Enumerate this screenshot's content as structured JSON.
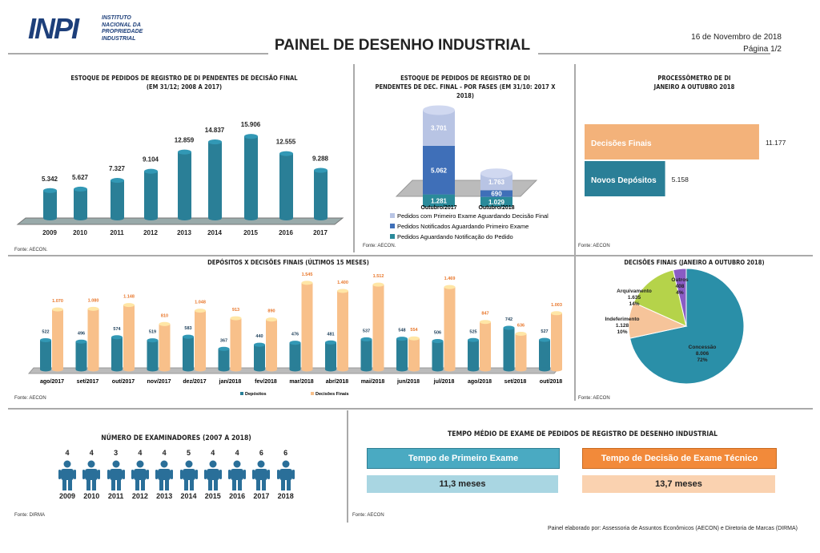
{
  "header": {
    "logo_text": "INPI",
    "logo_subtitle": "INSTITUTO NACIONAL DA PROPRIEDADE INDUSTRIAL",
    "title": "PAINEL DE DESENHO INDUSTRIAL",
    "date": "16 de Novembro de 2018",
    "page": "Página 1/2"
  },
  "colors": {
    "teal": "#2a7f97",
    "peach": "#f8c08a",
    "orange": "#f28a3a",
    "light_blue": "#b8c8e8",
    "mid_blue": "#3f6fb8",
    "pie_green": "#b5d34a",
    "pie_purple": "#8a5cc4"
  },
  "chart_data": [
    {
      "type": "bar",
      "title": "ESTOQUE DE PEDIDOS DE REGISTRO DE DI PENDENTES DE DECISÃO FINAL",
      "subtitle": "(EM 31/12; 2008 A 2017)",
      "categories": [
        "2009",
        "2010",
        "2011",
        "2012",
        "2013",
        "2014",
        "2015",
        "2016",
        "2017"
      ],
      "values": [
        5342,
        5627,
        7327,
        9104,
        12859,
        14837,
        15906,
        12555,
        9288
      ],
      "labels": [
        "5.342",
        "5.627",
        "7.327",
        "9.104",
        "12.859",
        "14.837",
        "15.906",
        "12.555",
        "9.288"
      ],
      "source": "Fonte: AECON."
    },
    {
      "type": "bar",
      "stacked": true,
      "title": "ESTOQUE DE PEDIDOS DE REGISTRO DE DI",
      "subtitle": "PENDENTES DE DEC. FINAL - POR FASES (EM 31/10: 2017 X 2018)",
      "categories": [
        "Outubro/2017",
        "Outubro/2018"
      ],
      "series": [
        {
          "name": "Pedidos Aguardando Notificação do Pedido",
          "values": [
            1281,
            1029
          ],
          "labels": [
            "1.281",
            "1.029"
          ],
          "color": "#2a8a9a"
        },
        {
          "name": "Pedidos Notificados Aguardando Primeiro Exame",
          "values": [
            5062,
            690
          ],
          "labels": [
            "5.062",
            "690"
          ],
          "color": "#3f6fb8"
        },
        {
          "name": "Pedidos com Primeiro Exame Aguardando Decisão Final",
          "values": [
            3701,
            1763
          ],
          "labels": [
            "3.701",
            "1.763"
          ],
          "color": "#b8c4e4"
        }
      ],
      "legend_order": [
        2,
        1,
        0
      ],
      "source": "Fonte: AECON."
    },
    {
      "type": "bar",
      "orientation": "horizontal",
      "title": "PROCESSÔMETRO DE DI",
      "subtitle": "JANEIRO A OUTUBRO 2018",
      "categories": [
        "Decisões Finais",
        "Novos Depósitos"
      ],
      "values": [
        11177,
        5158
      ],
      "labels": [
        "11.177",
        "5.158"
      ],
      "colors": [
        "#f3b27a",
        "#2a7f97"
      ],
      "source": "Fonte: AECON"
    },
    {
      "type": "bar",
      "title": "DEPÓSITOS X DECISÕES FINAIS (ÚLTIMOS 15 MESES)",
      "categories": [
        "ago/2017",
        "set/2017",
        "out/2017",
        "nov/2017",
        "dez/2017",
        "jan/2018",
        "fev/2018",
        "mar/2018",
        "abr/2018",
        "mai/2018",
        "jun/2018",
        "jul/2018",
        "ago/2018",
        "set/2018",
        "out/2018"
      ],
      "series": [
        {
          "name": "Depósitos",
          "values": [
            522,
            496,
            574,
            519,
            583,
            367,
            440,
            476,
            481,
            537,
            548,
            506,
            525,
            742,
            527
          ],
          "labels": [
            "522",
            "496",
            "574",
            "519",
            "583",
            "367",
            "440",
            "476",
            "481",
            "537",
            "548",
            "506",
            "525",
            "742",
            "527"
          ],
          "color": "#2a7f97"
        },
        {
          "name": "Decisões Finais",
          "values": [
            1070,
            1080,
            1148,
            810,
            1048,
            913,
            890,
            1545,
            1400,
            1512,
            554,
            1469,
            847,
            636,
            1003
          ],
          "labels": [
            "1.070",
            "1.080",
            "1.148",
            "810",
            "1.048",
            "913",
            "890",
            "1.545",
            "1.400",
            "1.512",
            "554",
            "1.469",
            "847",
            "636",
            "1.003"
          ],
          "color": "#f8c08a"
        }
      ],
      "legend": "bottom",
      "source": "Fonte: AECON"
    },
    {
      "type": "pie",
      "title": "DECISÕES FINAIS (JANEIRO A OUTUBRO 2018)",
      "slices": [
        {
          "name": "Concessão",
          "value": 8006,
          "label": "8.006",
          "pct": "72%",
          "color": "#2a8fa8"
        },
        {
          "name": "Indeferimento",
          "value": 1128,
          "label": "1.128",
          "pct": "10%",
          "color": "#f6c49a"
        },
        {
          "name": "Arquivamento",
          "value": 1635,
          "label": "1.635",
          "pct": "14%",
          "color": "#b5d34a"
        },
        {
          "name": "Outros",
          "value": 408,
          "label": "408",
          "pct": "4%",
          "color": "#8a5cc4"
        }
      ],
      "source": "Fonte: AECON"
    }
  ],
  "examiners": {
    "title": "NÚMERO DE EXAMINADORES (2007 A 2018)",
    "years": [
      "2009",
      "2010",
      "2011",
      "2012",
      "2013",
      "2014",
      "2015",
      "2016",
      "2017",
      "2018"
    ],
    "counts": [
      "4",
      "4",
      "3",
      "4",
      "4",
      "5",
      "4",
      "4",
      "6",
      "6"
    ],
    "source": "Fonte: DIRMA"
  },
  "tempo": {
    "title": "TEMPO MÉDIO DE EXAME DE PEDIDOS DE REGISTRO DE DESENHO INDUSTRIAL",
    "first_label": "Tempo de Primeiro Exame",
    "first_value": "11,3 meses",
    "decision_label": "Tempo de Decisão de Exame Técnico",
    "decision_value": "13,7 meses",
    "source": "Fonte: AECON"
  },
  "footer": "Painel elaborado por: Assessoria de Assuntos Econômicos (AECON) e Diretoria de Marcas (DIRMA)"
}
